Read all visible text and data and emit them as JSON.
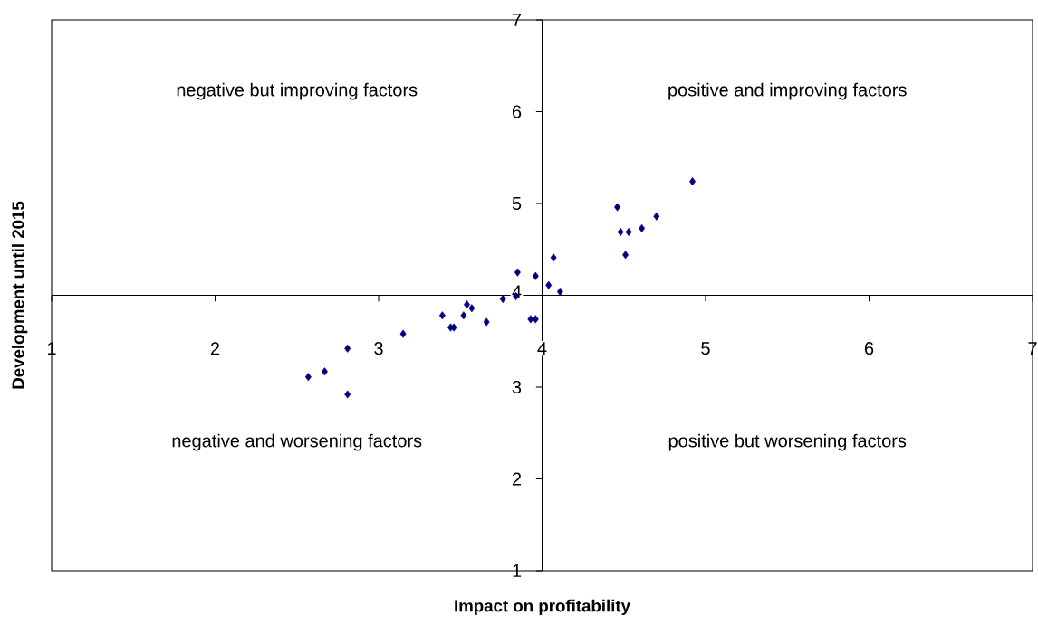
{
  "chart_data": {
    "type": "scatter",
    "xlabel": "Impact on profitability",
    "ylabel": "Development until 2015",
    "annotations": [
      "negative but improving factors",
      "positive and improving factors",
      "negative and worsening factors",
      "positive but worsening factors"
    ],
    "x": [
      2.57,
      2.67,
      2.81,
      2.81,
      3.15,
      3.39,
      3.44,
      3.46,
      3.52,
      3.54,
      3.57,
      3.66,
      3.76,
      3.84,
      3.85,
      3.93,
      3.96,
      3.96,
      4.04,
      4.07,
      4.11,
      4.46,
      4.48,
      4.51,
      4.53,
      4.61,
      4.7,
      4.92
    ],
    "series": [
      {
        "color": "#000080",
        "values": [
          3.11,
          3.17,
          3.42,
          2.92,
          3.58,
          3.78,
          3.65,
          3.65,
          3.78,
          3.9,
          3.86,
          3.71,
          3.96,
          3.99,
          4.25,
          3.74,
          3.74,
          4.21,
          4.11,
          4.41,
          4.04,
          4.96,
          4.69,
          4.44,
          4.69,
          4.73,
          4.86,
          5.24
        ]
      }
    ],
    "xlim": [
      1,
      7
    ],
    "ylim": [
      1,
      7
    ],
    "xticks": [
      1,
      2,
      3,
      4,
      5,
      6,
      7
    ],
    "yticks": [
      1,
      2,
      3,
      4,
      5,
      6,
      7
    ],
    "marker": "diamond"
  }
}
